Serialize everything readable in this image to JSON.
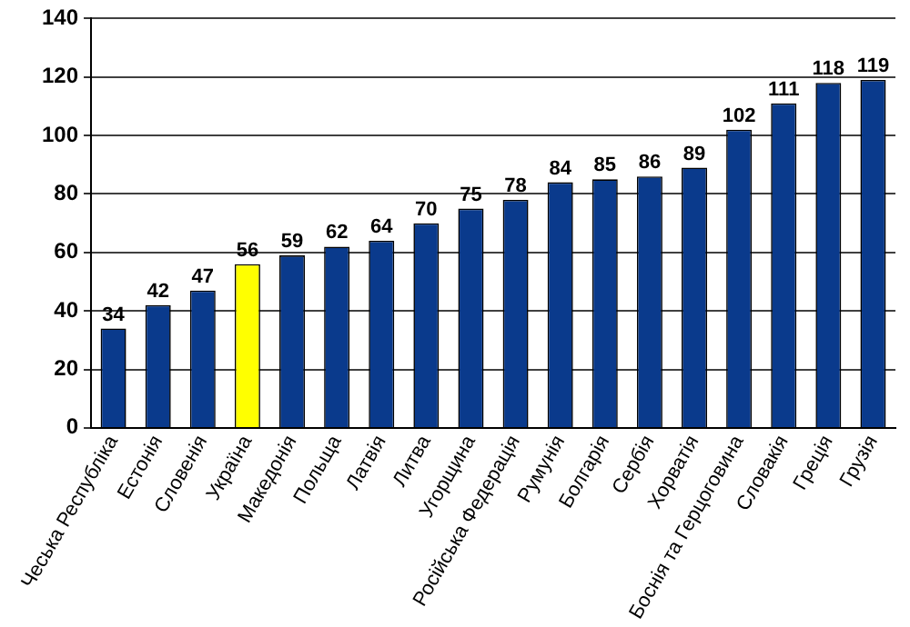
{
  "chart_data": {
    "type": "bar",
    "categories": [
      "Чеська Республіка",
      "Естонія",
      "Словенія",
      "Україна",
      "Македонія",
      "Польща",
      "Латвія",
      "Литва",
      "Угорщина",
      "Російська Федерація",
      "Румунія",
      "Болгарія",
      "Сербія",
      "Хорватія",
      "Боснія та Герцоговина",
      "Словакія",
      "Греція",
      "Грузія"
    ],
    "values": [
      34,
      42,
      47,
      56,
      59,
      62,
      64,
      70,
      75,
      78,
      84,
      85,
      86,
      89,
      102,
      111,
      118,
      119
    ],
    "colors": [
      "#0a3a8c",
      "#0a3a8c",
      "#0a3a8c",
      "#ffff00",
      "#0a3a8c",
      "#0a3a8c",
      "#0a3a8c",
      "#0a3a8c",
      "#0a3a8c",
      "#0a3a8c",
      "#0a3a8c",
      "#0a3a8c",
      "#0a3a8c",
      "#0a3a8c",
      "#0a3a8c",
      "#0a3a8c",
      "#0a3a8c",
      "#0a3a8c"
    ],
    "ylim": [
      0,
      140
    ],
    "yticks": [
      0,
      20,
      40,
      60,
      80,
      100,
      120,
      140
    ],
    "grid": "y",
    "data_labels": true
  }
}
